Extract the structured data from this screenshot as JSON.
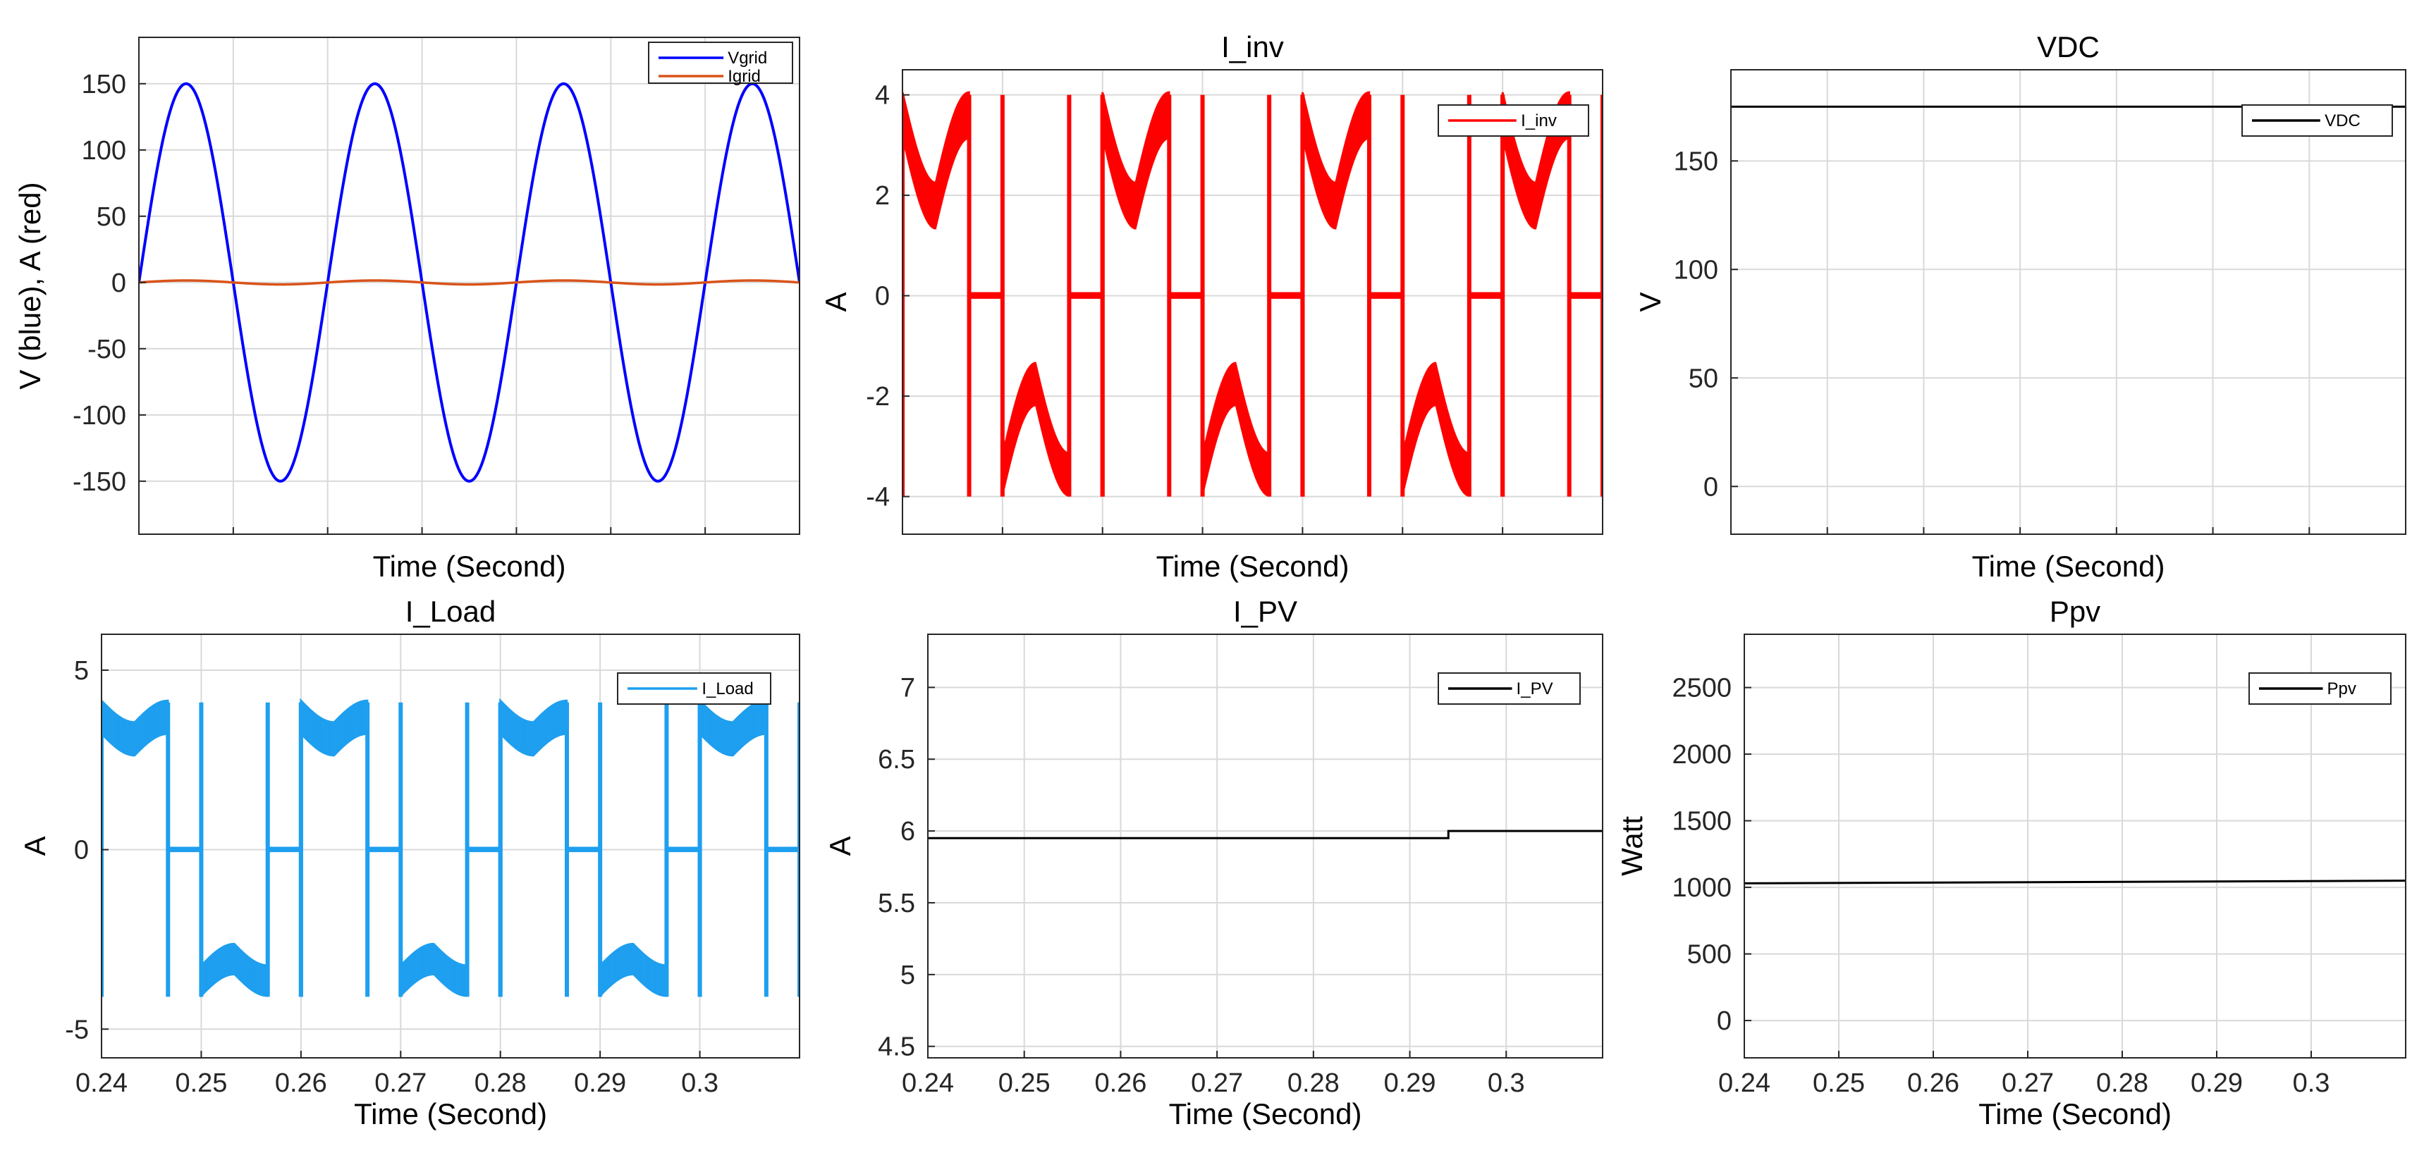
{
  "figure": {
    "xlabel_common": "Time (Second)",
    "xticks_common": [
      "0.24",
      "0.25",
      "0.26",
      "0.27",
      "0.28",
      "0.29",
      "0.3"
    ]
  },
  "chart_data": [
    {
      "id": "vgrid",
      "type": "line",
      "title": "",
      "xlabel": "Time (Second)",
      "ylabel": "V (blue), A (red)",
      "xlim": [
        0.24,
        0.31
      ],
      "ylim": [
        -190,
        185
      ],
      "xticks": [],
      "yticks": [
        150,
        100,
        50,
        0,
        -50,
        -100,
        -150
      ],
      "ytick_labels": [
        "150",
        "100",
        "50",
        "0",
        "-50",
        "-100",
        "-150"
      ],
      "grid": true,
      "legend_position": "top-right",
      "series": [
        {
          "name": "Vgrid",
          "color": "#0000ff",
          "shape": "sine",
          "amplitude": 150,
          "frequency_hz": 50,
          "phase_deg": 0,
          "x_range": [
            0.24,
            0.31
          ]
        },
        {
          "name": "Igrid",
          "color": "#d95319",
          "shape": "sine",
          "amplitude": 1.5,
          "frequency_hz": 50,
          "phase_deg": 0,
          "x_range": [
            0.24,
            0.31
          ]
        }
      ]
    },
    {
      "id": "iinv",
      "type": "line",
      "title": "I_inv",
      "xlabel": "Time (Second)",
      "ylabel": "A",
      "xlim": [
        0.24,
        0.31
      ],
      "ylim": [
        -4.75,
        4.5
      ],
      "xticks": [],
      "yticks": [
        4,
        2,
        0,
        -2,
        -4
      ],
      "ytick_labels": [
        "4",
        "2",
        "0",
        "-2",
        "-4"
      ],
      "grid": true,
      "legend_position": "top-right",
      "series": [
        {
          "name": "I_inv",
          "color": "#ff0000",
          "shape": "six-step band",
          "peak": 4,
          "plateau": 2.2,
          "frequency_hz": 50,
          "x_range": [
            0.24,
            0.31
          ]
        }
      ]
    },
    {
      "id": "vdc",
      "type": "line",
      "title": "VDC",
      "xlabel": "Time (Second)",
      "ylabel": "V",
      "xlim": [
        0.24,
        0.31
      ],
      "ylim": [
        -22,
        192
      ],
      "xticks": [],
      "yticks": [
        150,
        100,
        50,
        0
      ],
      "ytick_labels": [
        "150",
        "100",
        "50",
        "0"
      ],
      "grid": true,
      "legend_position": "top-right",
      "series": [
        {
          "name": "VDC",
          "color": "#000000",
          "x": [
            0.24,
            0.31
          ],
          "y": [
            175,
            175
          ]
        }
      ]
    },
    {
      "id": "iload",
      "type": "line",
      "title": "I_Load",
      "xlabel": "Time (Second)",
      "ylabel": "A",
      "xlim": [
        0.24,
        0.31
      ],
      "ylim": [
        -5.8,
        6.0
      ],
      "xticks": [
        0.24,
        0.25,
        0.26,
        0.27,
        0.28,
        0.29,
        0.3
      ],
      "xtick_labels": [
        "0.24",
        "0.25",
        "0.26",
        "0.27",
        "0.28",
        "0.29",
        "0.3"
      ],
      "yticks": [
        5,
        0,
        -5
      ],
      "ytick_labels": [
        "5",
        "0",
        "-5"
      ],
      "grid": true,
      "legend_position": "top-right",
      "series": [
        {
          "name": "I_Load",
          "color": "#1e9fef",
          "shape": "six-step band",
          "peak": 4.1,
          "plateau": 3.5,
          "frequency_hz": 50,
          "x_range": [
            0.24,
            0.31
          ]
        }
      ]
    },
    {
      "id": "ipv",
      "type": "line",
      "title": "I_PV",
      "xlabel": "Time (Second)",
      "ylabel": "A",
      "xlim": [
        0.24,
        0.31
      ],
      "ylim": [
        4.42,
        7.37
      ],
      "xticks": [
        0.24,
        0.25,
        0.26,
        0.27,
        0.28,
        0.29,
        0.3
      ],
      "xtick_labels": [
        "0.24",
        "0.25",
        "0.26",
        "0.27",
        "0.28",
        "0.29",
        "0.3"
      ],
      "yticks": [
        7,
        6.5,
        6,
        5.5,
        5,
        4.5
      ],
      "ytick_labels": [
        "7",
        "6.5",
        "6",
        "5.5",
        "5",
        "4.5"
      ],
      "grid": true,
      "legend_position": "top-right",
      "series": [
        {
          "name": "I_PV",
          "color": "#000000",
          "x": [
            0.24,
            0.294,
            0.294,
            0.31
          ],
          "y": [
            5.95,
            5.95,
            6.0,
            6.0
          ]
        }
      ]
    },
    {
      "id": "ppv",
      "type": "line",
      "title": "Ppv",
      "xlabel": "Time (Second)",
      "ylabel": "Watt",
      "xlim": [
        0.24,
        0.31
      ],
      "ylim": [
        -280,
        2900
      ],
      "xticks": [
        0.24,
        0.25,
        0.26,
        0.27,
        0.28,
        0.29,
        0.3
      ],
      "xtick_labels": [
        "0.24",
        "0.25",
        "0.26",
        "0.27",
        "0.28",
        "0.29",
        "0.3"
      ],
      "yticks": [
        2500,
        2000,
        1500,
        1000,
        500,
        0
      ],
      "ytick_labels": [
        "2500",
        "2000",
        "1500",
        "1000",
        "500",
        "0"
      ],
      "grid": true,
      "legend_position": "top-right",
      "series": [
        {
          "name": "Ppv",
          "color": "#000000",
          "x": [
            0.24,
            0.31
          ],
          "y": [
            1030,
            1050
          ]
        }
      ]
    }
  ]
}
